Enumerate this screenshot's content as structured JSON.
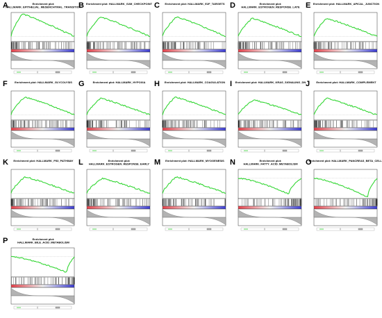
{
  "chart_data": {
    "type": "line",
    "colors": {
      "enrichment_line": "#33d633",
      "positive_rank": "#e8414b",
      "negative_rank": "#3b3bd4",
      "hit_marks": "#111111",
      "ranked_metric": "#b3b3b3"
    },
    "panels": [
      {
        "letter": "A",
        "title_lines": [
          "Enrichment plot:",
          "HALLMARK_EPITHELIAL_MESENCHYMAL_TRANSITION"
        ],
        "shape": "early_peak",
        "peak_position": 0.18,
        "peak_es": 0.75
      },
      {
        "letter": "B",
        "title_lines": [
          "Enrichment plot: HALLMARK_G2M_CHECKPOINT"
        ],
        "shape": "early_peak",
        "peak_position": 0.22,
        "peak_es": 0.65
      },
      {
        "letter": "C",
        "title_lines": [
          "Enrichment plot: HALLMARK_E2F_TARGETS"
        ],
        "shape": "early_peak",
        "peak_position": 0.22,
        "peak_es": 0.65
      },
      {
        "letter": "D",
        "title_lines": [
          "Enrichment plot:",
          "HALLMARK_ESTROGEN_RESPONSE_LATE"
        ],
        "shape": "early_peak",
        "peak_position": 0.22,
        "peak_es": 0.6
      },
      {
        "letter": "E",
        "title_lines": [
          "Enrichment plot: HALLMARK_APICAL_JUNCTION"
        ],
        "shape": "early_peak",
        "peak_position": 0.2,
        "peak_es": 0.6
      },
      {
        "letter": "F",
        "title_lines": [
          "Enrichment plot: HALLMARK_GLYCOLYSIS"
        ],
        "shape": "early_peak",
        "peak_position": 0.22,
        "peak_es": 0.6
      },
      {
        "letter": "G",
        "title_lines": [
          "Enrichment plot: HALLMARK_HYPOXIA"
        ],
        "shape": "early_peak",
        "peak_position": 0.22,
        "peak_es": 0.55
      },
      {
        "letter": "H",
        "title_lines": [
          "Enrichment plot: HALLMARK_COAGULATION"
        ],
        "shape": "early_peak",
        "peak_position": 0.2,
        "peak_es": 0.6
      },
      {
        "letter": "I",
        "title_lines": [
          "Enrichment plot: HALLMARK_KRAS_SIGNALING_DN"
        ],
        "shape": "early_peak",
        "peak_position": 0.25,
        "peak_es": 0.5
      },
      {
        "letter": "J",
        "title_lines": [
          "Enrichment plot: HALLMARK_COMPLEMENT"
        ],
        "shape": "early_peak",
        "peak_position": 0.2,
        "peak_es": 0.55
      },
      {
        "letter": "K",
        "title_lines": [
          "Enrichment plot: HALLMARK_P53_PATHWAY"
        ],
        "shape": "early_peak",
        "peak_position": 0.22,
        "peak_es": 0.55
      },
      {
        "letter": "L",
        "title_lines": [
          "Enrichment plot:",
          "HALLMARK_ESTROGEN_RESPONSE_EARLY"
        ],
        "shape": "early_peak",
        "peak_position": 0.25,
        "peak_es": 0.5
      },
      {
        "letter": "M",
        "title_lines": [
          "Enrichment plot: HALLMARK_MYOGENESIS"
        ],
        "shape": "early_peak",
        "peak_position": 0.22,
        "peak_es": 0.55
      },
      {
        "letter": "N",
        "title_lines": [
          "Enrichment plot:",
          "HALLMARK_FATTY_ACID_METABOLISM"
        ],
        "shape": "late_dip",
        "peak_position": 0.8,
        "peak_es": -0.5
      },
      {
        "letter": "O",
        "title_lines": [
          "Enrichment plot: HALLMARK_PANCREAS_BETA_CELLS"
        ],
        "shape": "late_dip",
        "peak_position": 0.85,
        "peak_es": -0.6
      },
      {
        "letter": "P",
        "title_lines": [
          "Enrichment plot:",
          "HALLMARK_BILE_ACID_METABOLISM"
        ],
        "shape": "late_dip",
        "peak_position": 0.88,
        "peak_es": -0.5
      }
    ]
  }
}
